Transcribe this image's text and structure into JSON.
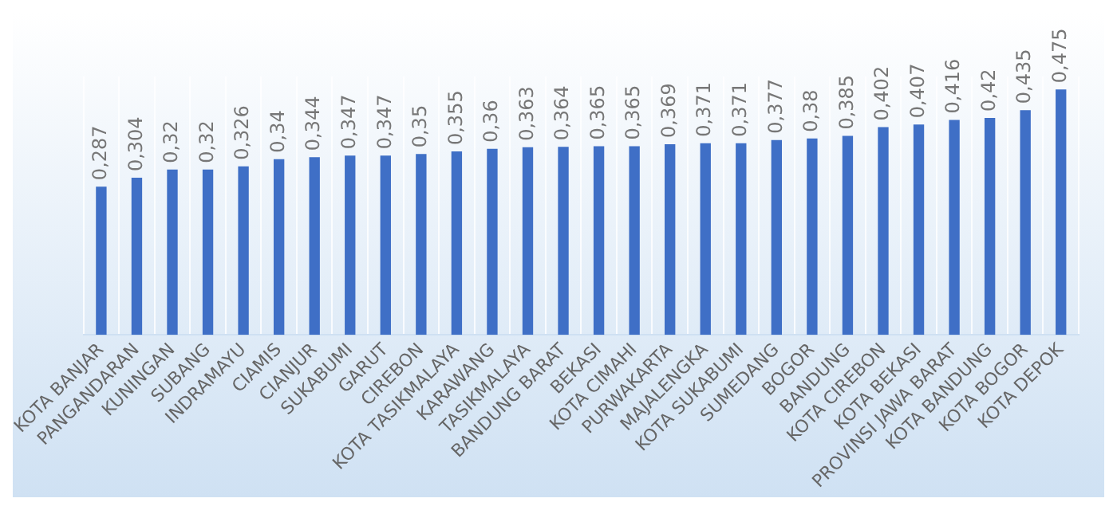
{
  "chart_data": {
    "type": "bar",
    "categories": [
      "KOTA BANJAR",
      "PANGANDARAN",
      "KUNINGAN",
      "SUBANG",
      "INDRAMAYU",
      "CIAMIS",
      "CIANJUR",
      "SUKABUMI",
      "GARUT",
      "CIREBON",
      "KOTA TASIKMALAYA",
      "KARAWANG",
      "TASIKMALAYA",
      "BANDUNG BARAT",
      "BEKASI",
      "KOTA CIMAHI",
      "PURWAKARTA",
      "MAJALENGKA",
      "KOTA SUKABUMI",
      "SUMEDANG",
      "BOGOR",
      "BANDUNG",
      "KOTA CIREBON",
      "KOTA BEKASI",
      "PROVINSI JAWA BARAT",
      "KOTA BANDUNG",
      "KOTA BOGOR",
      "KOTA DEPOK"
    ],
    "values": [
      0.287,
      0.304,
      0.32,
      0.32,
      0.326,
      0.34,
      0.344,
      0.347,
      0.347,
      0.35,
      0.355,
      0.36,
      0.363,
      0.364,
      0.365,
      0.365,
      0.369,
      0.371,
      0.371,
      0.377,
      0.38,
      0.385,
      0.402,
      0.407,
      0.416,
      0.42,
      0.435,
      0.475
    ],
    "value_labels": [
      "0,287",
      "0,304",
      "0,32",
      "0,32",
      "0,326",
      "0,34",
      "0,344",
      "0,347",
      "0,347",
      "0,35",
      "0,355",
      "0,36",
      "0,363",
      "0,364",
      "0,365",
      "0,365",
      "0,369",
      "0,371",
      "0,371",
      "0,377",
      "0,38",
      "0,385",
      "0,402",
      "0,407",
      "0,416",
      "0,42",
      "0,435",
      "0,475"
    ],
    "color": "#3f6fc6",
    "grid": "x",
    "legend": false
  }
}
